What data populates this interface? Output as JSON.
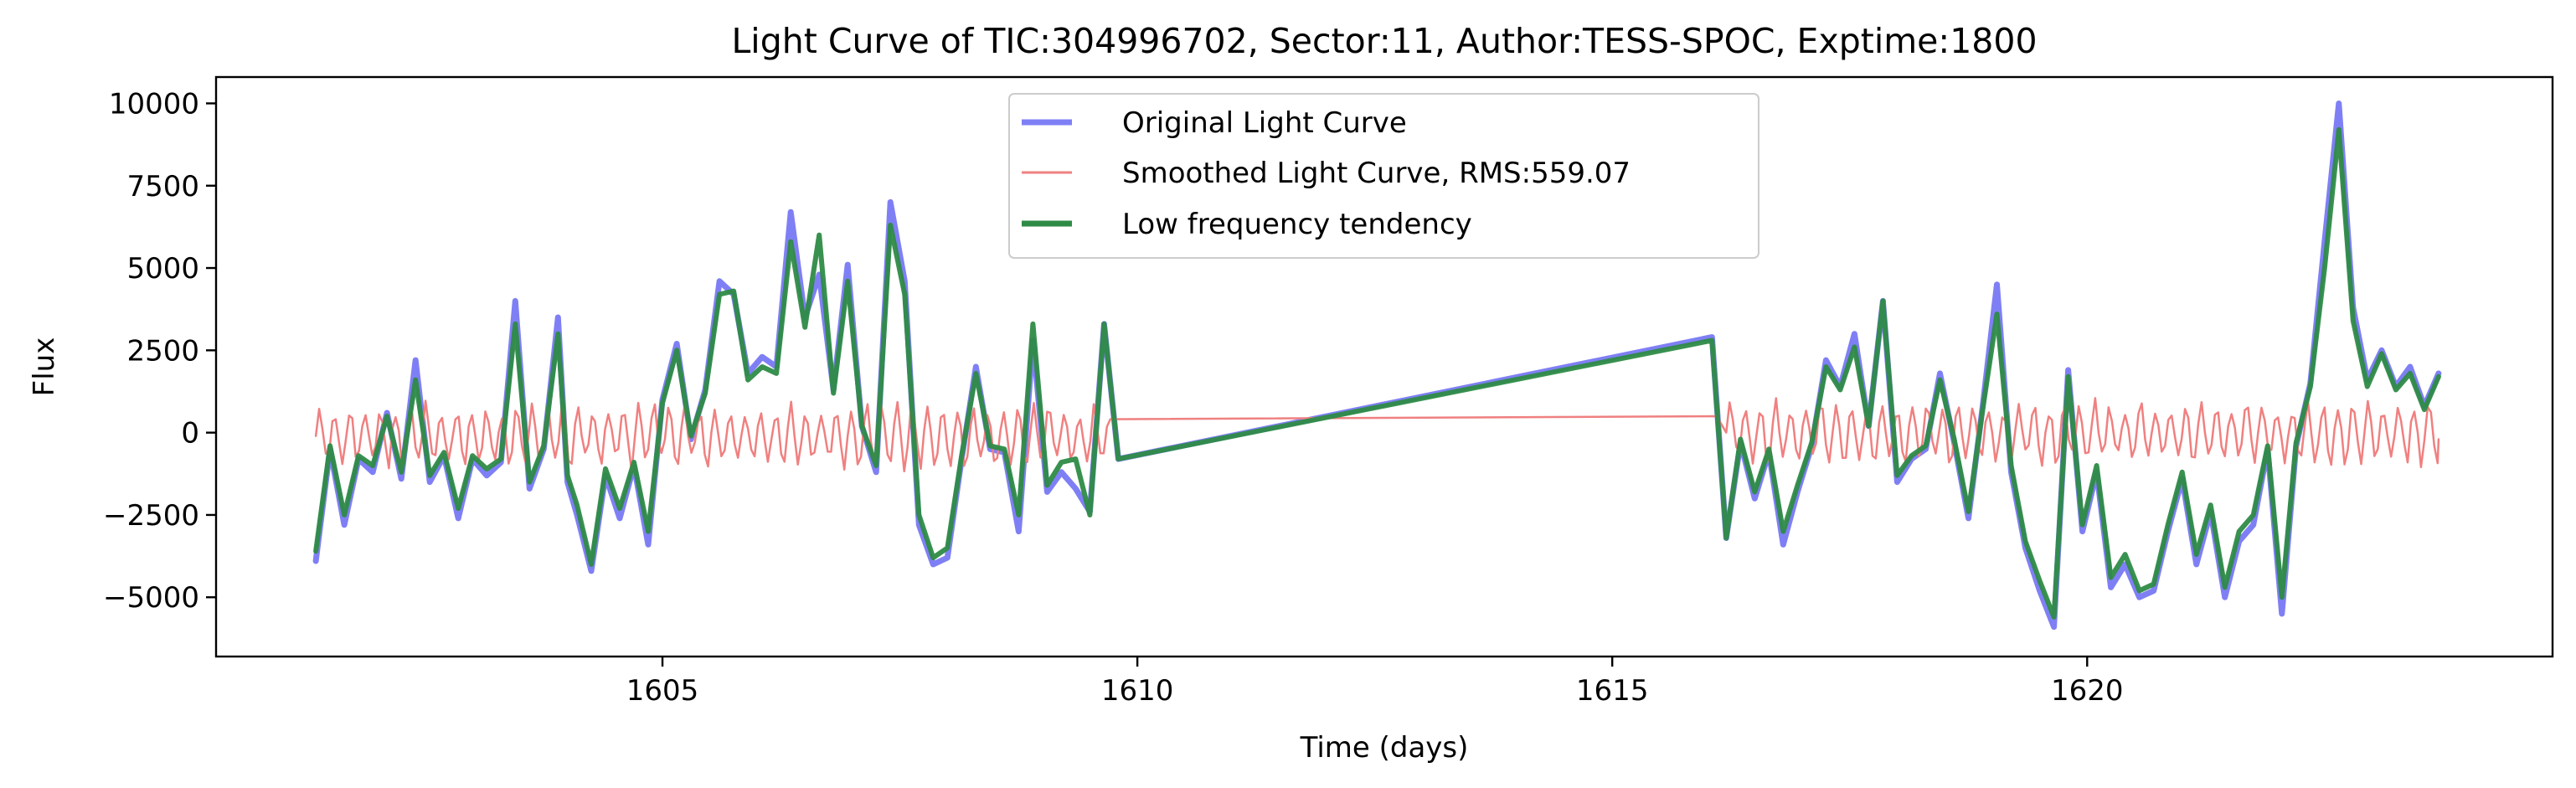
{
  "chart_data": {
    "type": "line",
    "title": "Light Curve of TIC:304996702, Sector:11, Author:TESS-SPOC, Exptime:1800",
    "xlabel": "Time (days)",
    "ylabel": "Flux",
    "xlim": [
      1600.3,
      1624.9
    ],
    "ylim": [
      -6800,
      10800
    ],
    "xticks": [
      1605,
      1610,
      1615,
      1620
    ],
    "xtick_labels": [
      "1605",
      "1610",
      "1615",
      "1620"
    ],
    "yticks": [
      10000,
      7500,
      5000,
      2500,
      0,
      -2500,
      -5000
    ],
    "ytick_labels": [
      "10000",
      "7500",
      "5000",
      "2500",
      "0",
      "−2500",
      "−5000"
    ],
    "grid": false,
    "legend_position": "top-center",
    "series": [
      {
        "name": "Original Light Curve",
        "color": "#7f7ff5",
        "x": [
          1601.35,
          1601.5,
          1601.65,
          1601.8,
          1601.95,
          1602.1,
          1602.25,
          1602.4,
          1602.55,
          1602.7,
          1602.85,
          1603.0,
          1603.15,
          1603.3,
          1603.45,
          1603.6,
          1603.75,
          1603.9,
          1604.0,
          1604.1,
          1604.25,
          1604.4,
          1604.55,
          1604.7,
          1604.85,
          1605.0,
          1605.15,
          1605.3,
          1605.45,
          1605.6,
          1605.75,
          1605.9,
          1606.05,
          1606.2,
          1606.35,
          1606.5,
          1606.65,
          1606.8,
          1606.95,
          1607.1,
          1607.25,
          1607.4,
          1607.55,
          1607.7,
          1607.85,
          1608.0,
          1608.15,
          1608.3,
          1608.45,
          1608.6,
          1608.75,
          1608.9,
          1609.05,
          1609.2,
          1609.35,
          1609.5,
          1609.65,
          1609.8,
          1616.05,
          1616.2,
          1616.35,
          1616.5,
          1616.65,
          1616.8,
          1616.95,
          1617.1,
          1617.25,
          1617.4,
          1617.55,
          1617.7,
          1617.85,
          1618.0,
          1618.15,
          1618.3,
          1618.45,
          1618.6,
          1618.75,
          1618.9,
          1619.05,
          1619.2,
          1619.35,
          1619.5,
          1619.65,
          1619.8,
          1619.95,
          1620.1,
          1620.25,
          1620.4,
          1620.55,
          1620.7,
          1620.85,
          1621.0,
          1621.15,
          1621.3,
          1621.45,
          1621.6,
          1621.75,
          1621.9,
          1622.05,
          1622.2,
          1622.35,
          1622.5,
          1622.65,
          1622.8,
          1622.95,
          1623.1,
          1623.25,
          1623.4,
          1623.55,
          1623.7
        ],
        "y": [
          -3900,
          -500,
          -2800,
          -800,
          -1200,
          600,
          -1400,
          2200,
          -1500,
          -700,
          -2600,
          -800,
          -1300,
          -900,
          4000,
          -1700,
          -500,
          3500,
          -1500,
          -2500,
          -4200,
          -1300,
          -2600,
          -1000,
          -3400,
          1000,
          2700,
          -200,
          1300,
          4600,
          4200,
          1800,
          2300,
          2000,
          6700,
          3500,
          4800,
          1300,
          5100,
          200,
          -1200,
          7000,
          4600,
          -2800,
          -4000,
          -3800,
          -800,
          2000,
          -500,
          -600,
          -3000,
          2800,
          -1800,
          -1200,
          -1700,
          -2400,
          3300,
          -800,
          2900,
          -3200,
          -300,
          -2000,
          -600,
          -3400,
          -1800,
          -400,
          2200,
          1400,
          3000,
          200,
          4000,
          -1500,
          -800,
          -500,
          1800,
          -300,
          -2600,
          800,
          4500,
          -1200,
          -3500,
          -4800,
          -5900,
          1900,
          -3000,
          -1200,
          -4700,
          -4000,
          -5000,
          -4800,
          -3000,
          -1400,
          -4000,
          -2400,
          -5000,
          -3300,
          -2800,
          -500,
          -5500,
          -400,
          1500,
          5800,
          10000,
          3800,
          1600,
          2500,
          1400,
          2000,
          800,
          1800
        ]
      },
      {
        "name": "Smoothed Light Curve, RMS:559.07",
        "color": "#f08080",
        "x": [],
        "y": []
      },
      {
        "name": "Low frequency tendency",
        "color": "#2e8b46",
        "x": [
          1601.35,
          1601.5,
          1601.65,
          1601.8,
          1601.95,
          1602.1,
          1602.25,
          1602.4,
          1602.55,
          1602.7,
          1602.85,
          1603.0,
          1603.15,
          1603.3,
          1603.45,
          1603.6,
          1603.75,
          1603.9,
          1604.0,
          1604.1,
          1604.25,
          1604.4,
          1604.55,
          1604.7,
          1604.85,
          1605.0,
          1605.15,
          1605.3,
          1605.45,
          1605.6,
          1605.75,
          1605.9,
          1606.05,
          1606.2,
          1606.35,
          1606.5,
          1606.65,
          1606.8,
          1606.95,
          1607.1,
          1607.25,
          1607.4,
          1607.55,
          1607.7,
          1607.85,
          1608.0,
          1608.15,
          1608.3,
          1608.45,
          1608.6,
          1608.75,
          1608.9,
          1609.05,
          1609.2,
          1609.35,
          1609.5,
          1609.65,
          1609.8,
          1616.05,
          1616.2,
          1616.35,
          1616.5,
          1616.65,
          1616.8,
          1616.95,
          1617.1,
          1617.25,
          1617.4,
          1617.55,
          1617.7,
          1617.85,
          1618.0,
          1618.15,
          1618.3,
          1618.45,
          1618.6,
          1618.75,
          1618.9,
          1619.05,
          1619.2,
          1619.35,
          1619.5,
          1619.65,
          1619.8,
          1619.95,
          1620.1,
          1620.25,
          1620.4,
          1620.55,
          1620.7,
          1620.85,
          1621.0,
          1621.15,
          1621.3,
          1621.45,
          1621.6,
          1621.75,
          1621.9,
          1622.05,
          1622.2,
          1622.35,
          1622.5,
          1622.65,
          1622.8,
          1622.95,
          1623.1,
          1623.25,
          1623.4,
          1623.55,
          1623.7
        ],
        "y": [
          -3600,
          -400,
          -2500,
          -700,
          -1000,
          500,
          -1200,
          1600,
          -1300,
          -600,
          -2300,
          -700,
          -1100,
          -800,
          3300,
          -1500,
          -400,
          3000,
          -1300,
          -2200,
          -4000,
          -1100,
          -2300,
          -900,
          -3000,
          900,
          2500,
          -100,
          1200,
          4200,
          4300,
          1600,
          2000,
          1800,
          5800,
          3200,
          6000,
          1200,
          4600,
          200,
          -1000,
          6300,
          4200,
          -2500,
          -3800,
          -3500,
          -700,
          1800,
          -400,
          -500,
          -2500,
          3300,
          -1600,
          -900,
          -800,
          -2500,
          3300,
          -800,
          2800,
          -3200,
          -200,
          -1800,
          -500,
          -3000,
          -1600,
          -300,
          2000,
          1300,
          2600,
          200,
          4000,
          -1300,
          -700,
          -400,
          1600,
          -200,
          -2400,
          700,
          3600,
          -1000,
          -3300,
          -4500,
          -5600,
          1700,
          -2800,
          -1000,
          -4400,
          -3700,
          -4800,
          -4600,
          -2800,
          -1200,
          -3700,
          -2200,
          -4700,
          -3000,
          -2500,
          -400,
          -5000,
          -300,
          1400,
          5000,
          9200,
          3400,
          1400,
          2400,
          1300,
          1800,
          700,
          1700
        ]
      }
    ]
  }
}
